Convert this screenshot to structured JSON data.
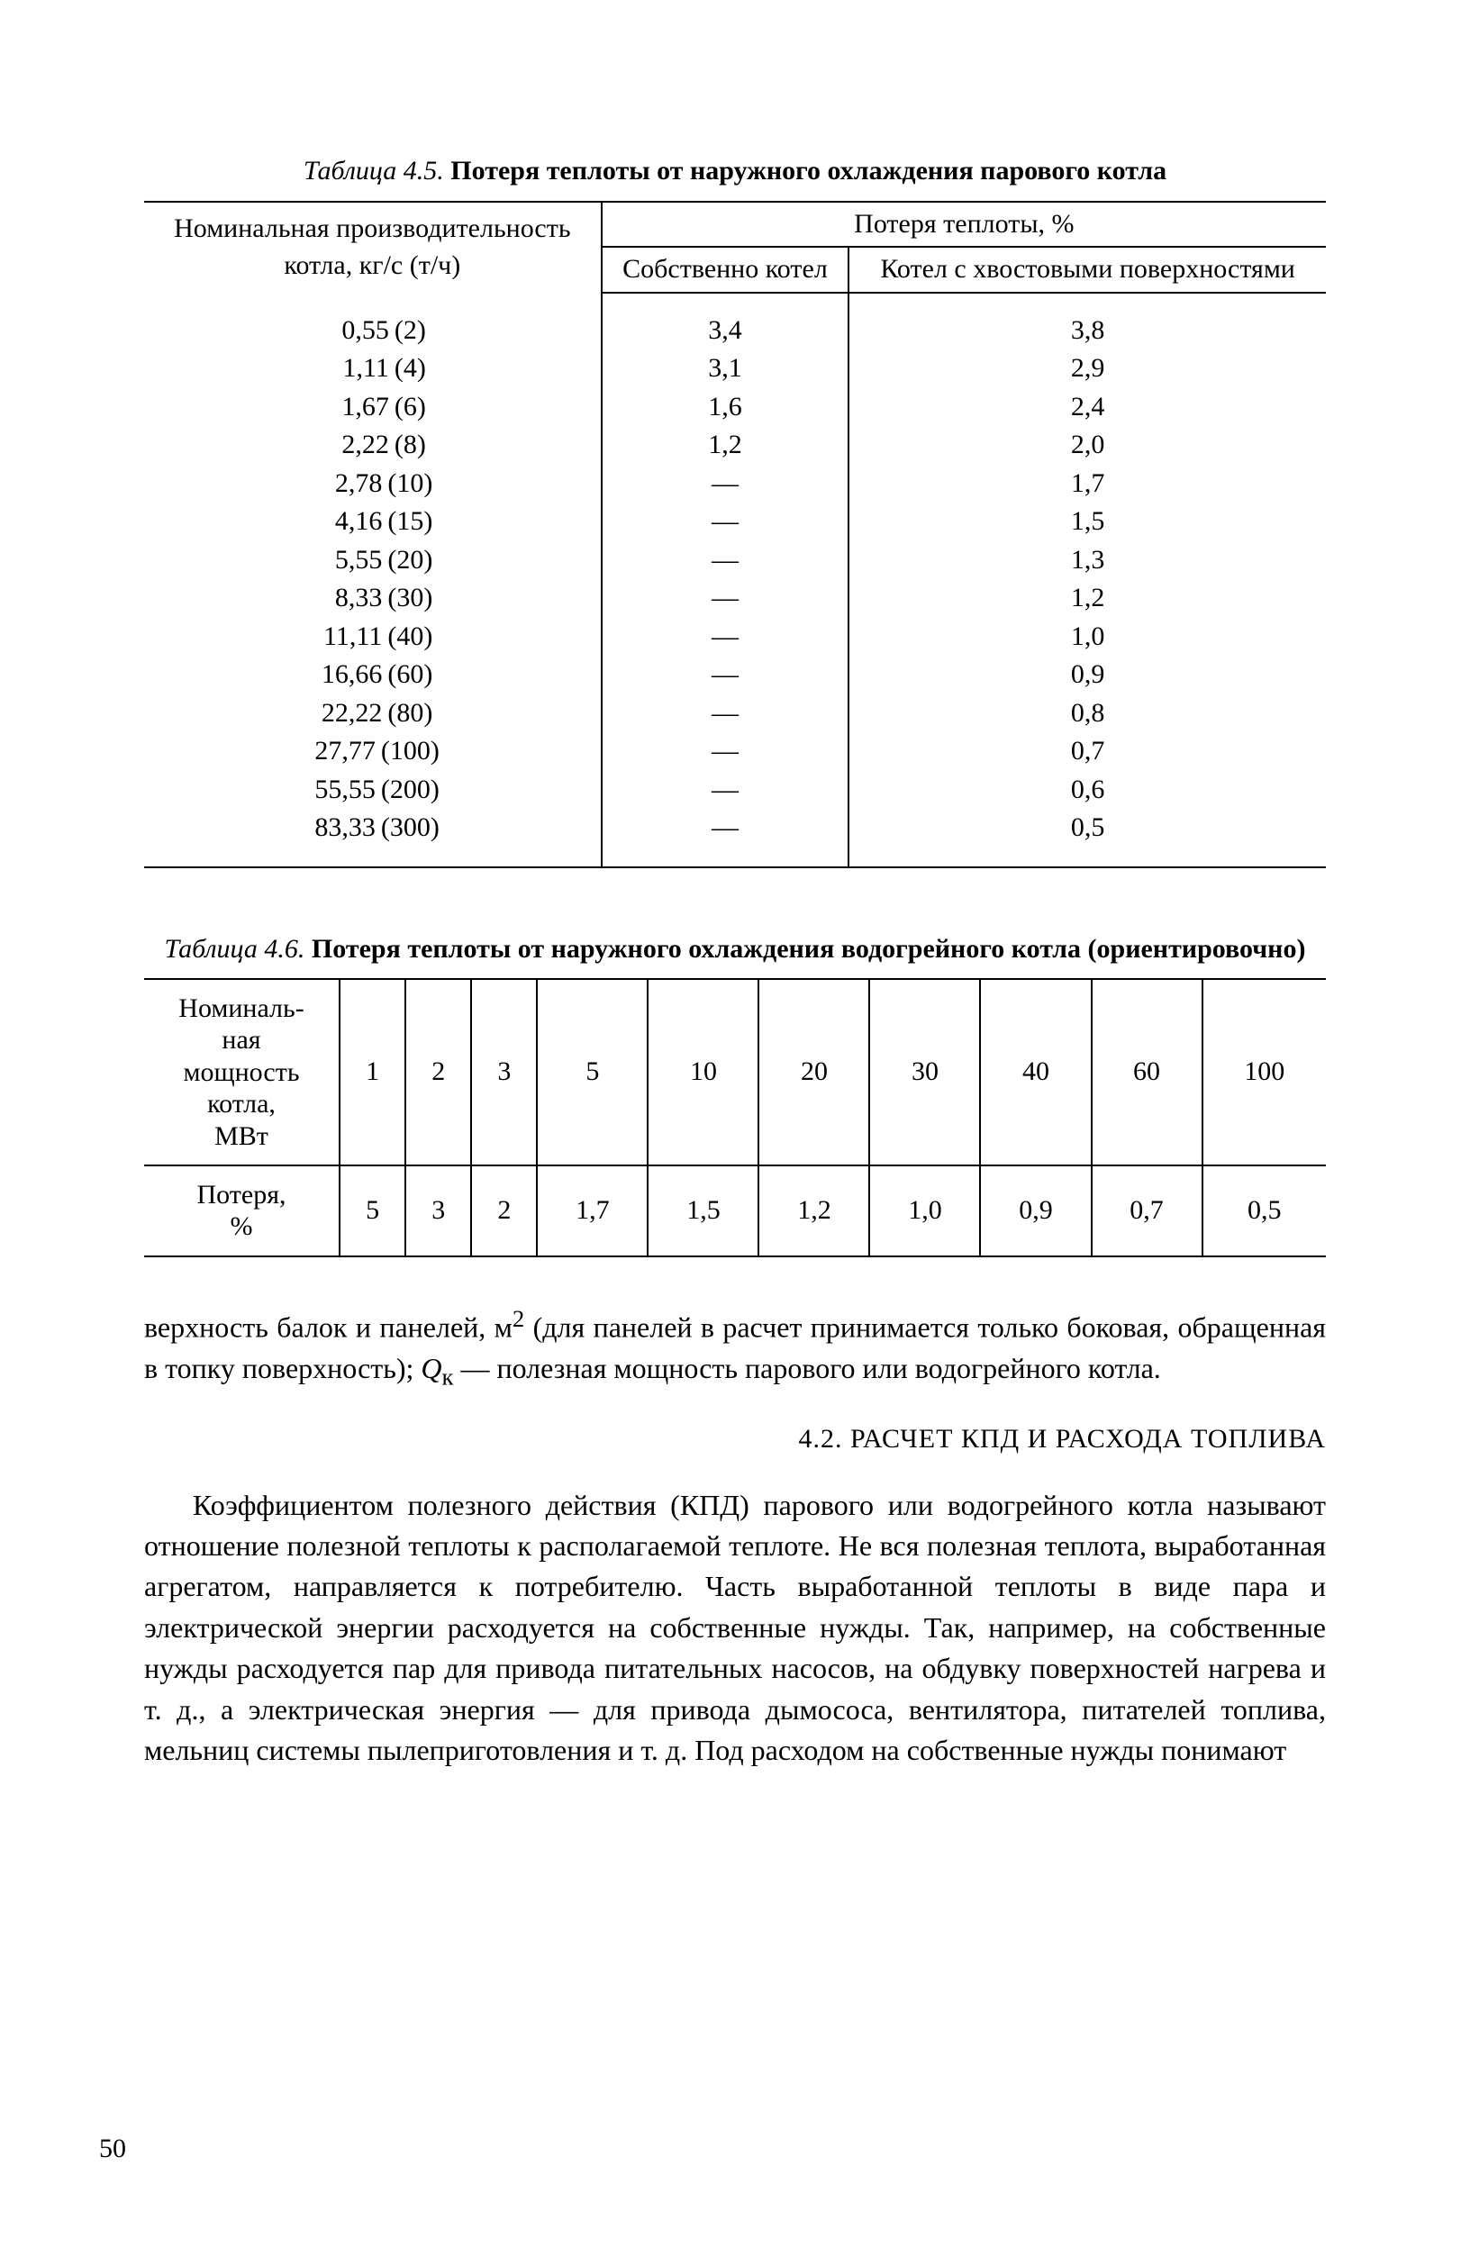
{
  "table45": {
    "caption_label": "Таблица 4.5.",
    "caption_title": "Потеря теплоты от наружного охлаждения парового котла",
    "head_col1_l1": "Номинальная производительность",
    "head_col1_l2": "котла, кг/с (т/ч)",
    "head_top": "Потеря теплоты, %",
    "head_sub1": "Собственно котел",
    "head_sub2": "Котел с хвостовыми поверхностями",
    "rows": [
      {
        "a": "0,55",
        "b": "(2)",
        "c1": "3,4",
        "c2": "3,8"
      },
      {
        "a": "1,11",
        "b": "(4)",
        "c1": "3,1",
        "c2": "2,9"
      },
      {
        "a": "1,67",
        "b": "(6)",
        "c1": "1,6",
        "c2": "2,4"
      },
      {
        "a": "2,22",
        "b": "(8)",
        "c1": "1,2",
        "c2": "2,0"
      },
      {
        "a": "2,78",
        "b": "(10)",
        "c1": "—",
        "c2": "1,7"
      },
      {
        "a": "4,16",
        "b": "(15)",
        "c1": "—",
        "c2": "1,5"
      },
      {
        "a": "5,55",
        "b": "(20)",
        "c1": "—",
        "c2": "1,3"
      },
      {
        "a": "8,33",
        "b": "(30)",
        "c1": "—",
        "c2": "1,2"
      },
      {
        "a": "11,11",
        "b": "(40)",
        "c1": "—",
        "c2": "1,0"
      },
      {
        "a": "16,66",
        "b": "(60)",
        "c1": "—",
        "c2": "0,9"
      },
      {
        "a": "22,22",
        "b": "(80)",
        "c1": "—",
        "c2": "0,8"
      },
      {
        "a": "27,77",
        "b": "(100)",
        "c1": "—",
        "c2": "0,7"
      },
      {
        "a": "55,55",
        "b": "(200)",
        "c1": "—",
        "c2": "0,6"
      },
      {
        "a": "83,33",
        "b": "(300)",
        "c1": "—",
        "c2": "0,5"
      }
    ]
  },
  "table46": {
    "caption_label": "Таблица 4.6.",
    "caption_title": "Потеря теплоты от наружного охлаждения водогрейного котла (ориентировочно)",
    "rowhead1": "Номиналь-\nная\nмощность\nкотла,\nМВт",
    "rowhead2": "Потеря,\n%",
    "power": [
      "1",
      "2",
      "3",
      "5",
      "10",
      "20",
      "30",
      "40",
      "60",
      "100"
    ],
    "loss": [
      "5",
      "3",
      "2",
      "1,7",
      "1,5",
      "1,2",
      "1,0",
      "0,9",
      "0,7",
      "0,5"
    ]
  },
  "para1_a": "верхность балок и панелей, м",
  "para1_b": " (для панелей в расчет принимается только боковая, обращенная в топку поверхность); ",
  "para1_q": "Q",
  "para1_qs": "к",
  "para1_c": " — полез­ная мощность парового или водогрейного котла.",
  "section_title": "4.2. РАСЧЕТ КПД И РАСХОДА ТОПЛИВА",
  "para2": "Коэффициентом полезного действия (КПД) парового или водо­грейного котла называют отношение полезной теплоты к распо­лагаемой теплоте. Не вся полезная теплота, выработанная агре­гатом, направляется к потребителю. Часть выработанной теплоты в виде пара и электрической энергии расходуется на собственные нужды. Так, например, на собственные нужды расходуется пар для привода питательных насосов, на обдувку поверхностей нагрева и т. д., а электрическая энергия — для привода дымо­соса, вентилятора, питателей топлива, мельниц системы пылепри­готовления и т. д. Под расходом на собственные нужды понимают",
  "page_number": "50"
}
